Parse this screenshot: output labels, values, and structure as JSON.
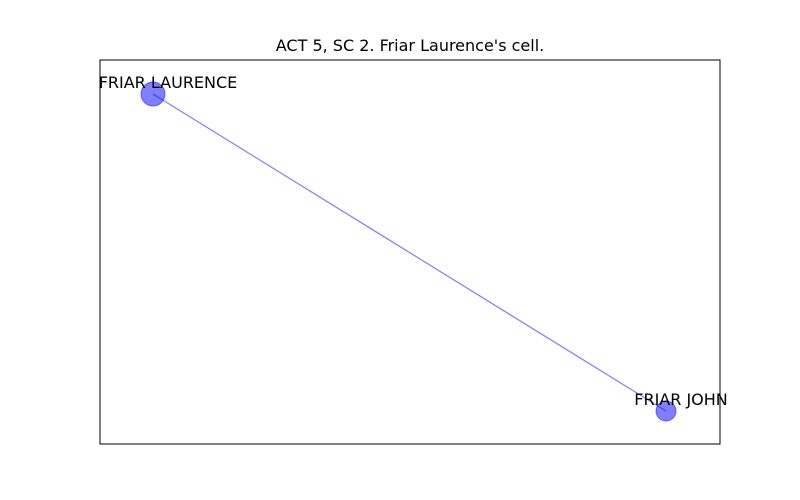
{
  "title": "ACT 5, SC 2. Friar Laurence's cell.",
  "colors": {
    "node_fill": "#0000ff",
    "edge_stroke": "#0000ff",
    "frame": "#000000"
  },
  "nodes": [
    {
      "id": "friar-laurence",
      "label": "FRIAR LAURENCE",
      "weight": 2
    },
    {
      "id": "friar-john",
      "label": "FRIAR JOHN",
      "weight": 1
    }
  ],
  "edges": [
    {
      "source": "friar-laurence",
      "target": "friar-john"
    }
  ]
}
